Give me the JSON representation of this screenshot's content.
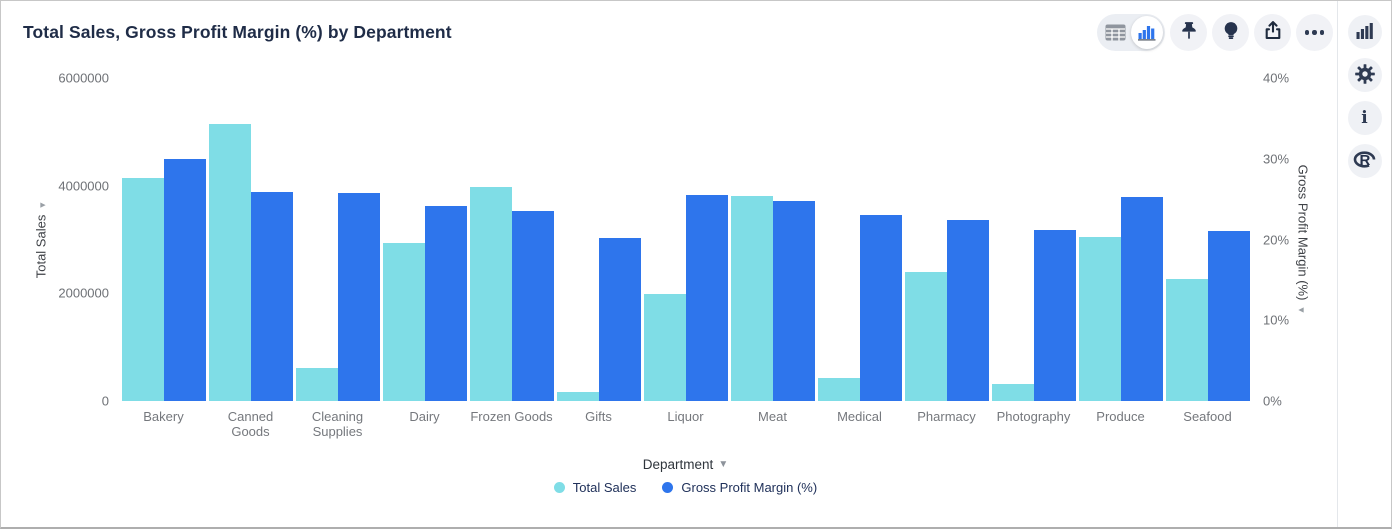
{
  "header": {
    "title": "Total Sales, Gross Profit Margin (%) by Department",
    "toolbar": {
      "view_toggle": [
        "table-view",
        "chart-view"
      ],
      "active_view": "chart-view",
      "buttons": [
        "pin",
        "insights-bulb",
        "export-share",
        "more-options"
      ]
    }
  },
  "side_rail": {
    "buttons": [
      "chart-options",
      "settings-gear",
      "info",
      "r-logo"
    ]
  },
  "chart_data": {
    "type": "bar",
    "title": "Total Sales, Gross Profit Margin (%) by Department",
    "categories": [
      "Bakery",
      "Canned Goods",
      "Cleaning Supplies",
      "Dairy",
      "Frozen Goods",
      "Gifts",
      "Liquor",
      "Meat",
      "Medical",
      "Pharmacy",
      "Photography",
      "Produce",
      "Seafood"
    ],
    "series": [
      {
        "name": "Total Sales",
        "axis": "left",
        "color": "#7fdde6",
        "values": [
          4150000,
          5150000,
          610000,
          2930000,
          3970000,
          160000,
          1980000,
          3800000,
          430000,
          2400000,
          320000,
          3040000,
          2270000
        ]
      },
      {
        "name": "Gross Profit Margin (%)",
        "axis": "right",
        "color": "#2e75ec",
        "values": [
          30,
          25.9,
          25.8,
          24.2,
          23.5,
          20.2,
          25.5,
          24.8,
          23,
          22.4,
          21.2,
          25.3,
          21
        ]
      }
    ],
    "left_axis": {
      "label": "Total Sales",
      "max": 6000000,
      "ticks": [
        "0",
        "2000000",
        "4000000",
        "6000000"
      ]
    },
    "right_axis": {
      "label": "Gross Profit Margin (%)",
      "max": 40,
      "ticks": [
        "0%",
        "10%",
        "20%",
        "30%",
        "40%"
      ]
    },
    "xlabel": "Department",
    "legend_position": "bottom",
    "grid": false
  }
}
